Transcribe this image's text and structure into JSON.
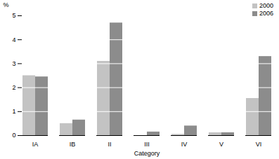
{
  "chart_data": {
    "type": "bar",
    "categories": [
      "IA",
      "IB",
      "II",
      "III",
      "IV",
      "V",
      "VI"
    ],
    "series": [
      {
        "name": "2000",
        "color": "#c3c3c3",
        "values": [
          2.5,
          0.5,
          3.1,
          0,
          0.05,
          0.12,
          1.55
        ]
      },
      {
        "name": "2006",
        "color": "#8c8c8c",
        "values": [
          2.45,
          0.65,
          4.7,
          0.15,
          0.4,
          0.12,
          3.3
        ]
      }
    ],
    "x_label": "Category",
    "y_label": "%",
    "ylim": [
      0,
      5
    ],
    "yticks": [
      0,
      1,
      2,
      3,
      4,
      5
    ],
    "grid": true,
    "legend": "top-right"
  }
}
